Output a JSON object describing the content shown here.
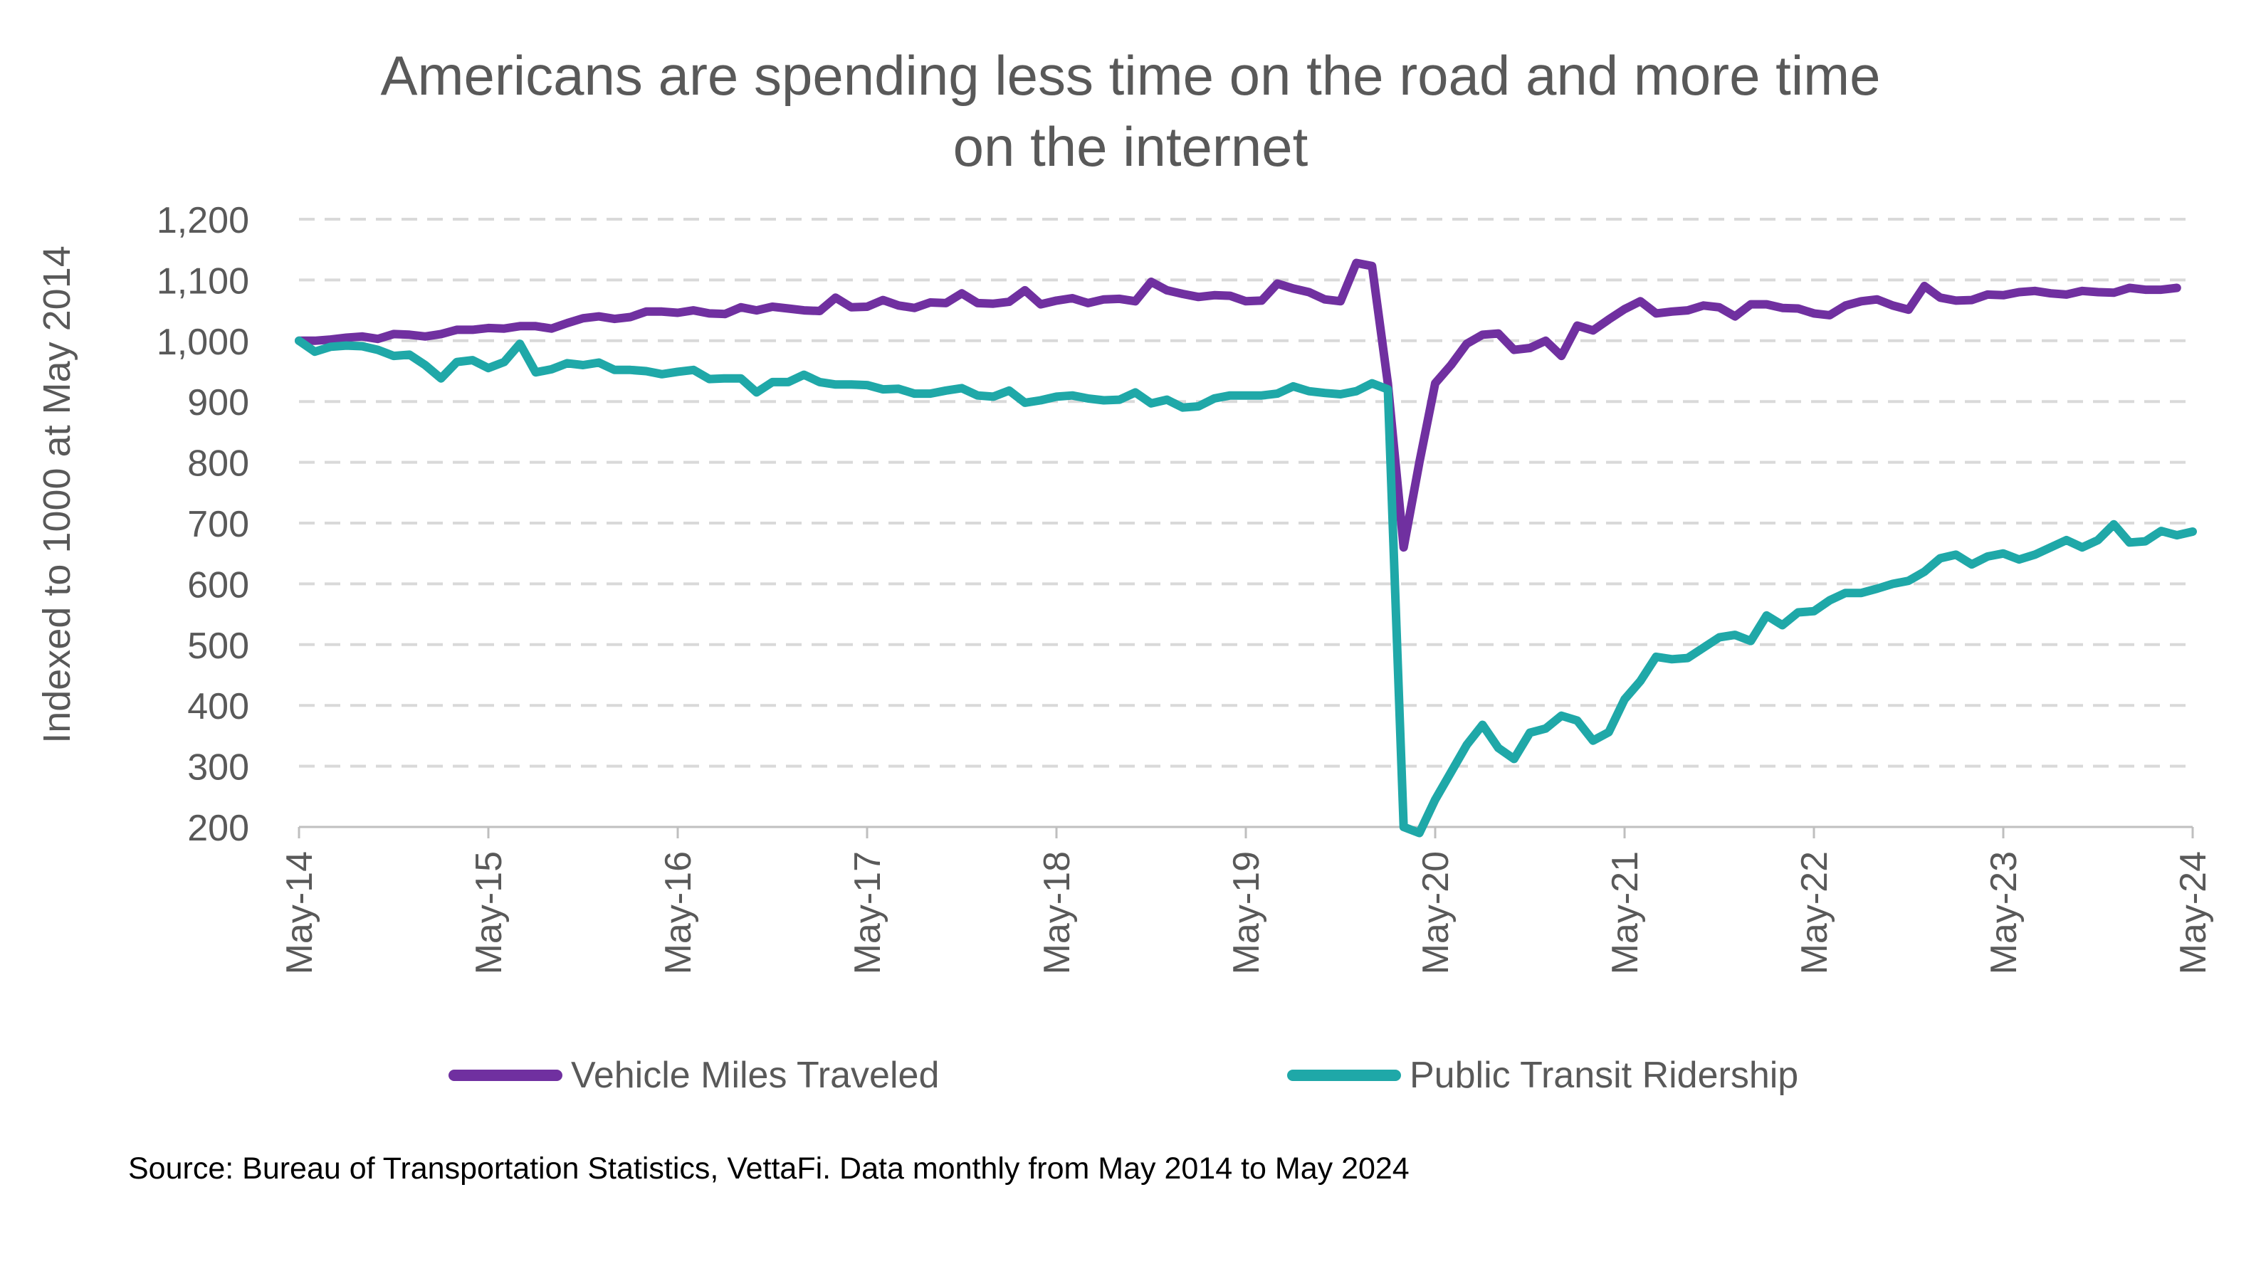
{
  "chart_data": {
    "type": "line",
    "title": [
      "Americans are spending less time on the road and more time",
      "on the internet"
    ],
    "ylabel": "Indexed to 1000 at May 2014",
    "xlabel": "",
    "ylim": [
      200,
      1200
    ],
    "yticks": [
      200,
      300,
      400,
      500,
      600,
      700,
      800,
      900,
      1000,
      1100,
      1200
    ],
    "ytick_labels": [
      "200",
      "300",
      "400",
      "500",
      "600",
      "700",
      "800",
      "900",
      "1,000",
      "1,100",
      "1,200"
    ],
    "x_start": "May-14",
    "xtick_labels": [
      "May-14",
      "May-15",
      "May-16",
      "May-17",
      "May-18",
      "May-19",
      "May-20",
      "May-21",
      "May-22",
      "May-23",
      "May-24"
    ],
    "grid": "horizontal dashed",
    "legend_position": "bottom",
    "series": [
      {
        "name": "Vehicle Miles Traveled",
        "color": "#7030A0",
        "values": [
          1000,
          1000,
          1002,
          1005,
          1007,
          1003,
          1011,
          1010,
          1007,
          1011,
          1018,
          1018,
          1021,
          1020,
          1024,
          1024,
          1020,
          1029,
          1037,
          1040,
          1036,
          1039,
          1048,
          1048,
          1046,
          1050,
          1045,
          1044,
          1055,
          1050,
          1056,
          1053,
          1050,
          1049,
          1071,
          1055,
          1056,
          1067,
          1058,
          1054,
          1063,
          1062,
          1078,
          1062,
          1061,
          1064,
          1083,
          1060,
          1066,
          1070,
          1062,
          1068,
          1069,
          1065,
          1097,
          1083,
          1077,
          1072,
          1075,
          1074,
          1065,
          1066,
          1094,
          1086,
          1080,
          1068,
          1065,
          1128,
          1123,
          930,
          660,
          800,
          930,
          960,
          995,
          1010,
          1012,
          985,
          988,
          1000,
          975,
          1025,
          1017,
          1035,
          1052,
          1065,
          1045,
          1048,
          1050,
          1058,
          1055,
          1040,
          1060,
          1060,
          1054,
          1053,
          1045,
          1042,
          1058,
          1065,
          1068,
          1058,
          1051,
          1090,
          1071,
          1066,
          1067,
          1076,
          1075,
          1080,
          1082,
          1078,
          1076,
          1082,
          1080,
          1079,
          1087,
          1084,
          1084,
          1087
        ]
      },
      {
        "name": "Public Transit Ridership",
        "color": "#1FA8A8",
        "values": [
          1000,
          982,
          990,
          992,
          991,
          985,
          975,
          977,
          960,
          938,
          965,
          968,
          955,
          965,
          995,
          948,
          953,
          963,
          960,
          964,
          952,
          952,
          950,
          945,
          949,
          952,
          937,
          938,
          938,
          915,
          932,
          932,
          944,
          932,
          928,
          928,
          927,
          920,
          921,
          913,
          913,
          918,
          922,
          910,
          908,
          918,
          898,
          902,
          908,
          910,
          905,
          902,
          903,
          915,
          897,
          903,
          890,
          892,
          905,
          910,
          910,
          910,
          913,
          925,
          917,
          914,
          912,
          917,
          930,
          920,
          200,
          190,
          245,
          290,
          335,
          368,
          330,
          312,
          355,
          362,
          383,
          375,
          342,
          356,
          410,
          440,
          480,
          476,
          478,
          495,
          512,
          516,
          506,
          548,
          532,
          553,
          555,
          573,
          585,
          585,
          592,
          600,
          605,
          620,
          642,
          648,
          632,
          645,
          650,
          640,
          648,
          660,
          672,
          660,
          672,
          698,
          668,
          670,
          687,
          680,
          686
        ]
      }
    ]
  },
  "source_note": "Source: Bureau of Transportation Statistics, VettaFi. Data monthly from May 2014 to May 2024"
}
